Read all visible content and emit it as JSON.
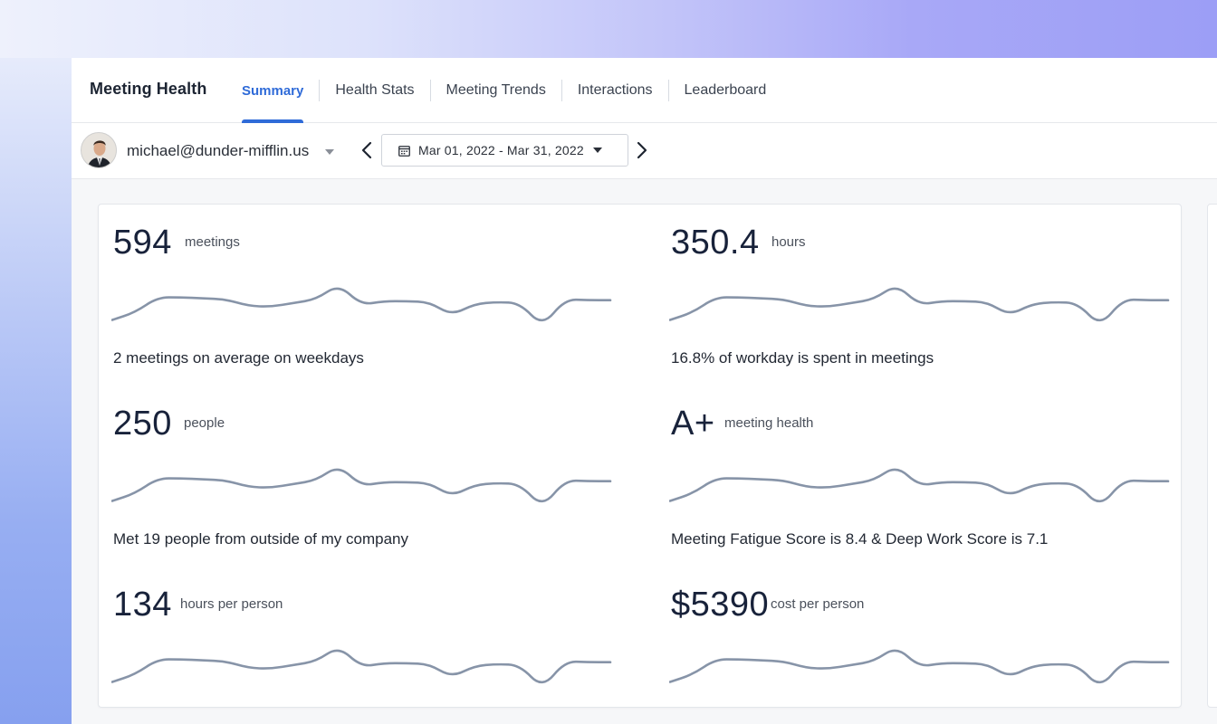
{
  "app": {
    "title": "Meeting Health"
  },
  "tabs": [
    {
      "label": "Summary",
      "active": true
    },
    {
      "label": "Health Stats",
      "active": false
    },
    {
      "label": "Meeting Trends",
      "active": false
    },
    {
      "label": "Interactions",
      "active": false
    },
    {
      "label": "Leaderboard",
      "active": false
    }
  ],
  "toolbar": {
    "user_email": "michael@dunder-mifflin.us",
    "date_range": "Mar 01, 2022 - Mar 31, 2022"
  },
  "metrics": [
    {
      "value": "594",
      "unit": "meetings",
      "description": "2 meetings on average on weekdays"
    },
    {
      "value": "350.4",
      "unit": "hours",
      "description": "16.8% of workday is spent in meetings"
    },
    {
      "value": "250",
      "unit": "people",
      "description": "Met 19 people from outside of my company"
    },
    {
      "value": "A+",
      "unit": "meeting health",
      "description": "Meeting Fatigue Score is 8.4 & Deep Work Score is 7.1"
    },
    {
      "value": "134",
      "unit": "hours per person",
      "description": ""
    },
    {
      "value": "$5390",
      "unit": "cost per person",
      "description": ""
    }
  ],
  "colors": {
    "accent": "#2f6bd8",
    "sparkline": "#8794a8",
    "value_text": "#18223a"
  },
  "chart_data": {
    "type": "line",
    "values": [
      12,
      20,
      36,
      36,
      35,
      34,
      27,
      26,
      30,
      34,
      50,
      28,
      32,
      32,
      31,
      17,
      29,
      31,
      30,
      5,
      34,
      33,
      33
    ]
  }
}
